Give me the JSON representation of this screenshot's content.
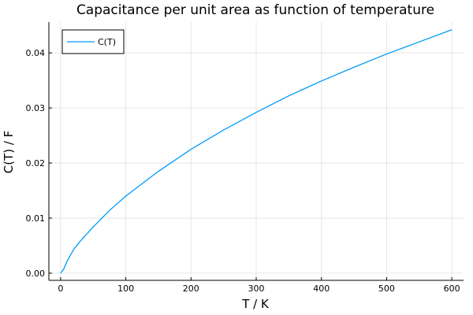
{
  "chart_data": {
    "type": "line",
    "title": "Capacitance per unit area as function of temperature",
    "xlabel": "T / K",
    "ylabel": "C(T) / F",
    "xlim": [
      -18,
      618
    ],
    "ylim": [
      -0.0013,
      0.0456
    ],
    "x_ticks": [
      0,
      100,
      200,
      300,
      400,
      500,
      600
    ],
    "x_tick_labels": [
      "0",
      "100",
      "200",
      "300",
      "400",
      "500",
      "600"
    ],
    "y_ticks": [
      0,
      0.01,
      0.02,
      0.03,
      0.04
    ],
    "y_tick_labels": [
      "0.00",
      "0.01",
      "0.02",
      "0.03",
      "0.04"
    ],
    "grid": true,
    "legend_position": "top-left",
    "series": [
      {
        "name": "C(T)",
        "color": "#009AFA",
        "x": [
          0,
          5,
          10,
          20,
          30,
          50,
          75,
          100,
          150,
          200,
          250,
          300,
          350,
          400,
          450,
          500,
          550,
          600
        ],
        "y": [
          0,
          0.0008,
          0.0022,
          0.0043,
          0.0058,
          0.0084,
          0.0114,
          0.014,
          0.0185,
          0.0225,
          0.026,
          0.0292,
          0.0322,
          0.0349,
          0.0374,
          0.0398,
          0.042,
          0.0442
        ]
      }
    ]
  }
}
